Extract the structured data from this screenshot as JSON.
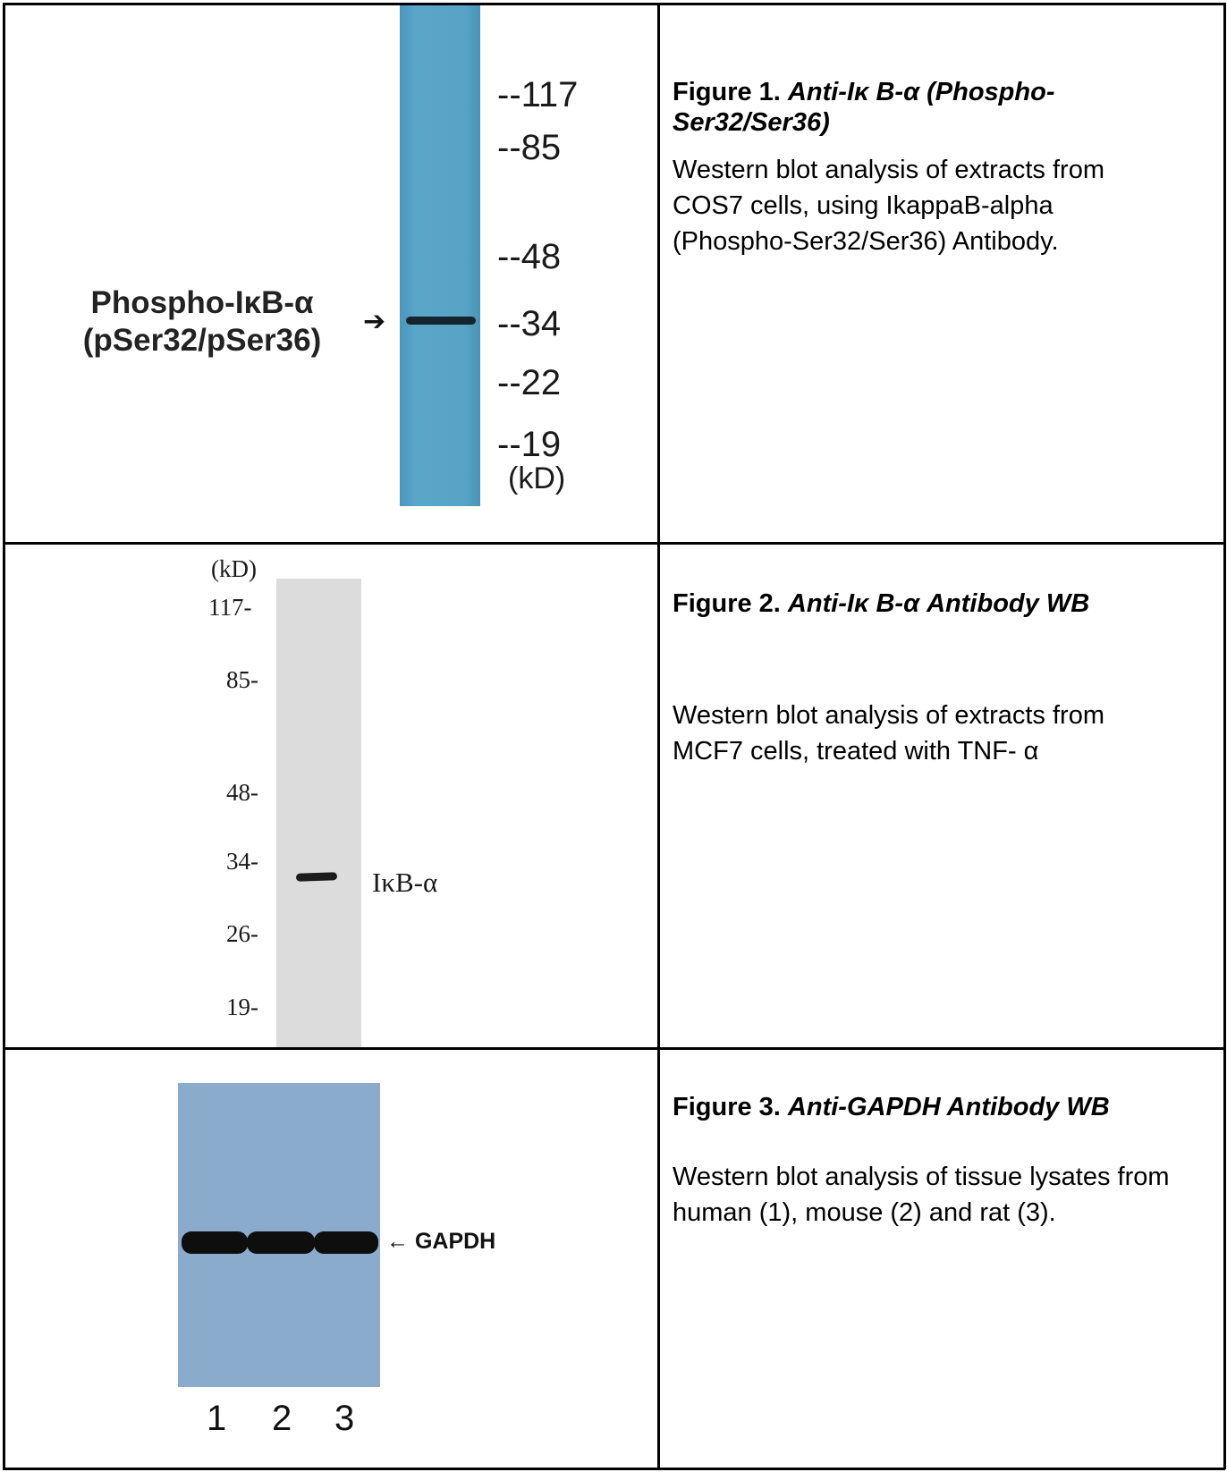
{
  "figures": [
    {
      "title_prefix": "Figure 1.",
      "title_italic": "Anti-Iκ B-α (Phospho-",
      "title_italic_2": "Ser32/Ser36)",
      "description_lines": [
        "Western blot analysis of extracts from",
        "COS7 cells, using IkappaB-alpha",
        "(Phospho-Ser32/Ser36) Antibody."
      ],
      "blot_label_lines": [
        "Phospho-IκB-α",
        "(pSer32/pSer36)"
      ],
      "markers": [
        "--117",
        "--85",
        "--48",
        "--34",
        "--22",
        "--19"
      ],
      "unit": "(kD)"
    },
    {
      "title_prefix": "Figure 2.",
      "title_italic": "Anti-Iκ B-α  Antibody WB",
      "description_lines": [
        "Western blot analysis of extracts from",
        "MCF7 cells, treated with TNF- α"
      ],
      "unit": "(kD)",
      "markers": [
        "117-",
        "85-",
        "48-",
        "34-",
        "26-",
        "19-"
      ],
      "band_label": "IκB-α"
    },
    {
      "title_prefix": "Figure 3.",
      "title_italic": "Anti-GAPDH Antibody WB",
      "description_lines": [
        "Western blot analysis of tissue lysates from",
        "human (1), mouse (2) and rat (3)."
      ],
      "band_label": "← GAPDH",
      "lanes": [
        "1",
        "2",
        "3"
      ]
    }
  ]
}
